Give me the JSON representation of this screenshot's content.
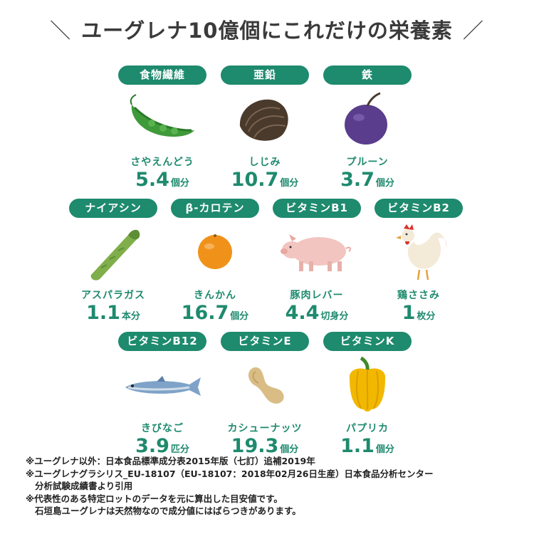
{
  "title": {
    "left_slash": "＼",
    "text": "ユーグレナ10億個にこれだけの栄養素",
    "right_slash": "／"
  },
  "items": [
    {
      "nutrient": "食物繊維",
      "food": "さやえんどう",
      "num": "5.4",
      "unit": "個分",
      "icon": "snow-pea-icon",
      "color": "#3f9a3a"
    },
    {
      "nutrient": "亜鉛",
      "food": "しじみ",
      "num": "10.7",
      "unit": "個分",
      "icon": "clam-icon",
      "color": "#4a3a2c"
    },
    {
      "nutrient": "鉄",
      "food": "プルーン",
      "num": "3.7",
      "unit": "個分",
      "icon": "prune-icon",
      "color": "#5a3d8c"
    },
    {
      "nutrient": "ナイアシン",
      "food": "アスパラガス",
      "num": "1.1",
      "unit": "本分",
      "icon": "asparagus-icon",
      "color": "#7fae4a"
    },
    {
      "nutrient": "β-カロテン",
      "food": "きんかん",
      "num": "16.7",
      "unit": "個分",
      "icon": "kumquat-icon",
      "color": "#f0921a"
    },
    {
      "nutrient": "ビタミンB1",
      "food": "豚肉レバー",
      "num": "4.4",
      "unit": "切身分",
      "icon": "pig-icon",
      "color": "#f2c5c0"
    },
    {
      "nutrient": "ビタミンB2",
      "food": "鶏ささみ",
      "num": "1",
      "unit": "枚分",
      "icon": "chicken-icon",
      "color": "#f3ead8"
    },
    {
      "nutrient": "ビタミンB12",
      "food": "きびなご",
      "num": "3.9",
      "unit": "匹分",
      "icon": "fish-icon",
      "color": "#7fa3c8"
    },
    {
      "nutrient": "ビタミンE",
      "food": "カシューナッツ",
      "num": "19.3",
      "unit": "個分",
      "icon": "cashew-icon",
      "color": "#d9bd85"
    },
    {
      "nutrient": "ビタミンK",
      "food": "パプリカ",
      "num": "1.1",
      "unit": "個分",
      "icon": "paprika-icon",
      "color": "#f2b800"
    }
  ],
  "notes": [
    "※ユーグレナ以外：日本食品標準成分表2015年版（七訂）追補2019年",
    "※ユーグレナグラシリス_EU-18107（EU-18107：2018年02月26日生産）日本食品分析センター",
    "分析試験成績書より引用",
    "※代表性のある特定ロットのデータを元に算出した目安値です。",
    "石垣島ユーグレナは天然物なので成分値にはばらつきがあります。"
  ]
}
